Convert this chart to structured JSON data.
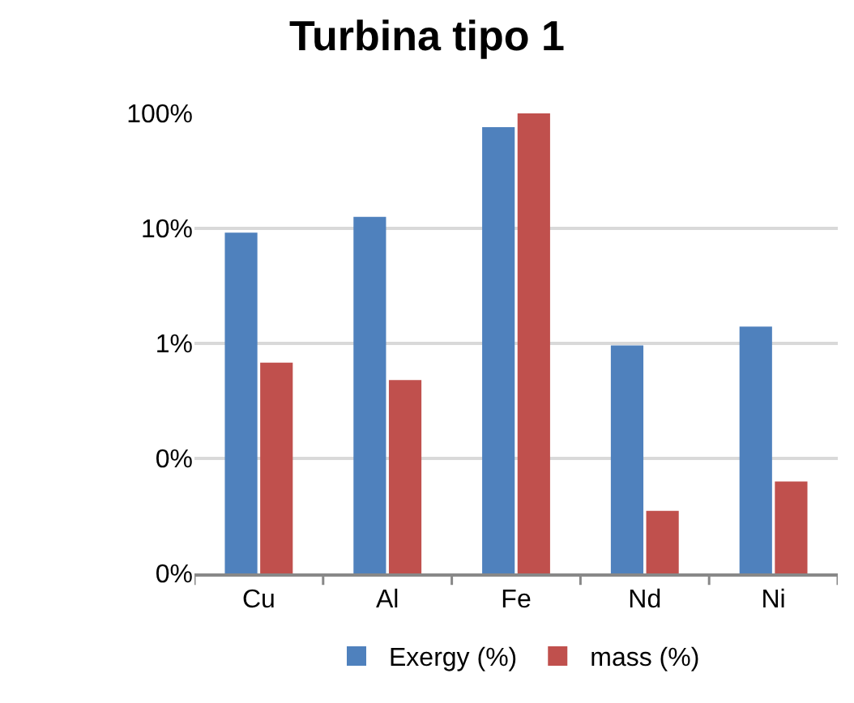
{
  "chart_data": {
    "type": "bar",
    "title": "Turbina tipo 1",
    "categories": [
      "Cu",
      "Al",
      "Fe",
      "Nd",
      "Ni"
    ],
    "series": [
      {
        "name": "Exergy (%)",
        "color": "#4f81bd",
        "values": [
          9.2,
          12.6,
          76,
          0.96,
          1.4
        ]
      },
      {
        "name": "mass (%)",
        "color": "#c0504d",
        "values": [
          0.68,
          0.48,
          100,
          0.035,
          0.063
        ]
      }
    ],
    "log": "y",
    "ylim": [
      0.01,
      100
    ],
    "yticks": [
      {
        "value": 0.01,
        "label": "0%"
      },
      {
        "value": 0.1,
        "label": "0%"
      },
      {
        "value": 1,
        "label": "1%"
      },
      {
        "value": 10,
        "label": "10%"
      },
      {
        "value": 100,
        "label": "100%"
      }
    ],
    "grid": "y",
    "legend": "bottom"
  }
}
